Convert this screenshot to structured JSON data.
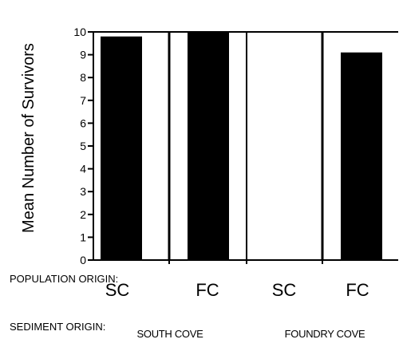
{
  "chart_data": {
    "type": "bar",
    "ylabel": "Mean Number of Survivors",
    "xlabel": "",
    "ylim": [
      0,
      10
    ],
    "yticks": [
      "0",
      "1",
      "2",
      "3",
      "4",
      "5",
      "6",
      "7",
      "8",
      "9",
      "10"
    ],
    "grid": false,
    "row_labels": {
      "population": "POPULATION ORIGIN:",
      "sediment": "SEDIMENT ORIGIN:"
    },
    "categories": [
      "SC",
      "FC",
      "SC",
      "FC"
    ],
    "sediment_groups": [
      "SOUTH COVE",
      "FOUNDRY COVE"
    ],
    "values": [
      9.8,
      10.0,
      0,
      9.1
    ],
    "colors": {
      "bar": "#000000",
      "axis": "#000000",
      "background": "#ffffff"
    }
  }
}
